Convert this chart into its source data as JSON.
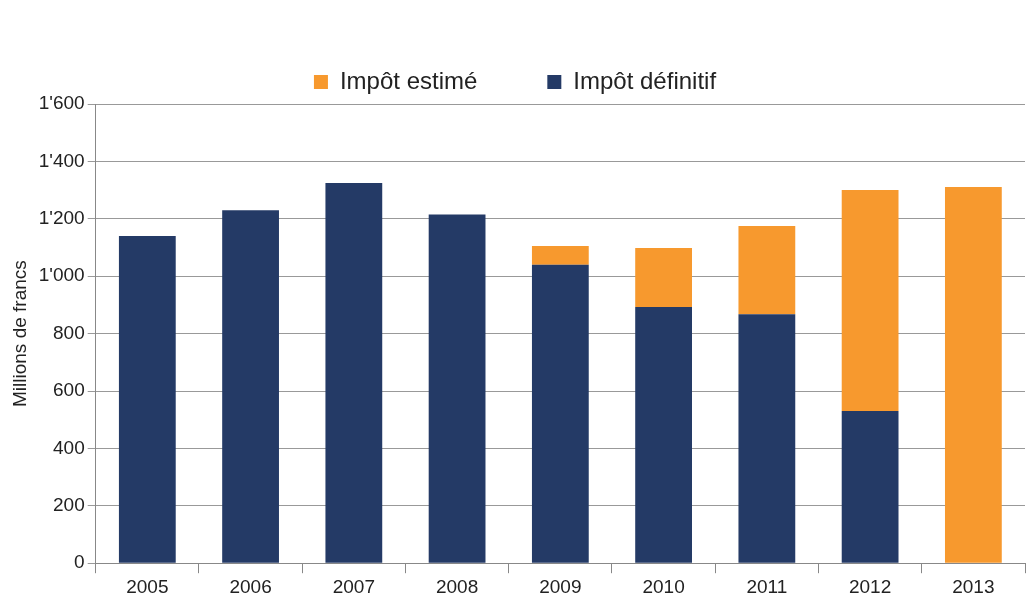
{
  "chart_data": {
    "type": "bar",
    "ylabel": "Millions de francs",
    "categories": [
      "2005",
      "2006",
      "2007",
      "2008",
      "2009",
      "2010",
      "2011",
      "2012",
      "2013"
    ],
    "series": [
      {
        "name": "Impôt définitif",
        "color": "#243a66",
        "values": [
          1140,
          1230,
          1325,
          1215,
          1040,
          893,
          867,
          530,
          0
        ]
      },
      {
        "name": "Impôt estimé",
        "color": "#f7992e",
        "values": [
          0,
          0,
          0,
          0,
          65,
          205,
          308,
          770,
          1311
        ]
      }
    ],
    "stacked": true,
    "ylim": [
      0,
      1600
    ],
    "yticks": [
      0,
      200,
      400,
      600,
      800,
      {
        "value": 1000,
        "label": "1'000"
      },
      {
        "value": 1200,
        "label": "1'200"
      },
      {
        "value": 1400,
        "label": "1'400"
      },
      {
        "value": 1600,
        "label": "1'600"
      }
    ],
    "grid": "y",
    "legend": "top"
  }
}
